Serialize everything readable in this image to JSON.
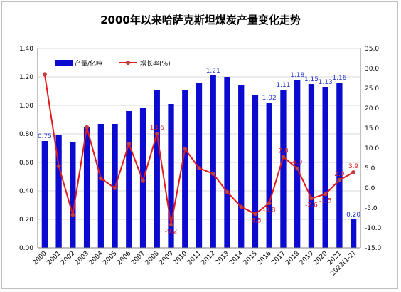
{
  "chart_data": {
    "type": "bar+line",
    "title": "2000年以来哈萨克斯坦煤炭产量变化走势",
    "categories": [
      "2000",
      "2001",
      "2002",
      "2003",
      "2004",
      "2005",
      "2006",
      "2007",
      "2008",
      "2009",
      "2010",
      "2011",
      "2012",
      "2013",
      "2014",
      "2015",
      "2016",
      "2017",
      "2018",
      "2019",
      "2020",
      "2021",
      "2022(1-2)"
    ],
    "left_axis": {
      "min": 0,
      "max": 1.4,
      "step": 0.2,
      "ticks": [
        "0.00",
        "0.20",
        "0.40",
        "0.60",
        "0.80",
        "1.00",
        "1.20",
        "1.40"
      ]
    },
    "right_axis": {
      "min": -15,
      "max": 35,
      "step": 5,
      "ticks": [
        "-15.0",
        "-10.0",
        "-5.0",
        "0.0",
        "5.0",
        "10.0",
        "15.0",
        "20.0",
        "25.0",
        "30.0",
        "35.0"
      ]
    },
    "series": [
      {
        "name": "产量/亿吨",
        "type": "bar",
        "axis": "left",
        "color": "#0a0ad0",
        "values": [
          0.75,
          0.79,
          0.74,
          0.85,
          0.87,
          0.87,
          0.96,
          0.98,
          1.11,
          1.01,
          1.11,
          1.16,
          1.21,
          1.2,
          1.14,
          1.07,
          1.02,
          1.11,
          1.18,
          1.15,
          1.13,
          1.16,
          0.2
        ],
        "labels": [
          "0.75",
          "",
          "",
          "",
          "",
          "",
          "",
          "",
          "",
          "",
          "",
          "",
          "1.21",
          "",
          "",
          "",
          "1.02",
          "1.11",
          "1.18",
          "1.15",
          "1.13",
          "1.16",
          "0.20"
        ]
      },
      {
        "name": "增长率(%)",
        "type": "line",
        "axis": "right",
        "color": "#e01b1b",
        "values": [
          28.5,
          5.5,
          -6.7,
          15.2,
          2.4,
          0,
          11.1,
          1.8,
          13.6,
          -9.2,
          9.8,
          5.0,
          3.6,
          -1.0,
          -4.7,
          -6.5,
          -3.8,
          7.8,
          4.9,
          -2.6,
          -1.5,
          2.0,
          3.9
        ],
        "labels": [
          "",
          "",
          "",
          "",
          "",
          "",
          "",
          "",
          "13.6",
          "-9.2",
          "",
          "",
          "",
          "",
          "",
          "-6.5",
          "-3.8",
          "7.8",
          "4.9",
          "-2.6",
          "-1.5",
          "2.0",
          "3.9"
        ]
      }
    ],
    "legend": "top-left"
  }
}
